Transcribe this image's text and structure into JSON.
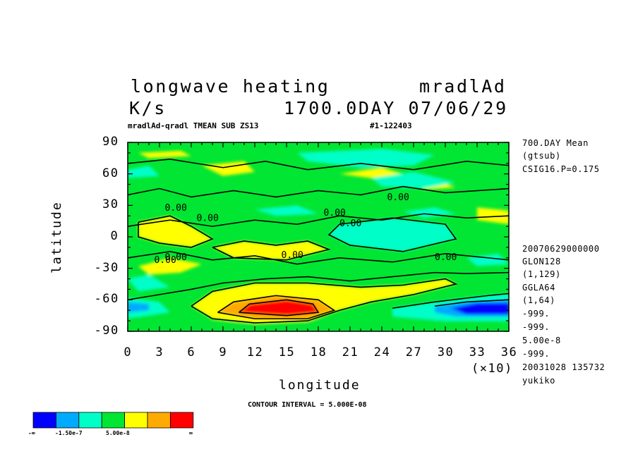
{
  "header": {
    "title_left": "longwave heating",
    "title_right": "mradlAd",
    "units": "K/s",
    "time": "1700.0DAY 07/06/29",
    "subtitle_left": "mradlAd-qradl TMEAN SUB ZS13",
    "subtitle_right": "#1-122403"
  },
  "info_panel": [
    "700.DAY Mean",
    "(gtsub)",
    "CSIG16.P=0.175",
    "20070629000000",
    "GLON128",
    "(1,129)",
    "GGLA64",
    "(1,64)",
    "-999.",
    "-999.",
    "5.00e-8",
    "-999.",
    "20031028 135732",
    "yukiko"
  ],
  "contour_interval": "CONTOUR INTERVAL = 5.000E-08",
  "colorbar": {
    "colors": [
      "#0000ff",
      "#00aaff",
      "#00ffc8",
      "#00e632",
      "#ffff00",
      "#ffaa00",
      "#ff0000"
    ],
    "labels": [
      "-∞",
      "-1.50e-7",
      "5.00e-8",
      "∞"
    ]
  },
  "contour_labels": [
    "0.00",
    "0.00",
    "0.00",
    "0.00",
    "0.00",
    "0.00",
    "0.00",
    "0.00",
    "0.00"
  ],
  "chart_data": {
    "type": "heatmap",
    "xlabel": "longitude",
    "ylabel": "latitude",
    "x_scale_note": "(×10)",
    "xlim": [
      0,
      36
    ],
    "ylim": [
      -90,
      90
    ],
    "x_ticks": [
      "0",
      "3",
      "6",
      "9",
      "12",
      "15",
      "18",
      "21",
      "24",
      "27",
      "30",
      "33",
      "36"
    ],
    "y_ticks": [
      "90",
      "60",
      "30",
      "0",
      "-30",
      "-60",
      "-90"
    ],
    "contour_interval": 5e-08,
    "color_levels": [
      -1.5e-07,
      -1e-07,
      -5e-08,
      0,
      5e-08,
      1e-07
    ],
    "features": [
      {
        "region": "southern mid-latitude maximum",
        "lon_range": [
          9,
          16
        ],
        "lat_range": [
          -75,
          -60
        ],
        "value": 1.5e-07
      },
      {
        "region": "south-east minimum",
        "lon_range": [
          30,
          36
        ],
        "lat_range": [
          -75,
          -60
        ],
        "value": -1.5e-07
      },
      {
        "region": "south-west minimum",
        "lon_range": [
          0,
          3
        ],
        "lat_range": [
          -75,
          -55
        ],
        "value": -1e-07
      },
      {
        "region": "southern positive band",
        "lon_range": [
          6,
          28
        ],
        "lat_range": [
          -70,
          -40
        ],
        "value": 5e-08
      },
      {
        "region": "north-east negative patches",
        "lon_range": [
          18,
          30
        ],
        "lat_range": [
          40,
          80
        ],
        "value": -5e-08
      }
    ]
  }
}
